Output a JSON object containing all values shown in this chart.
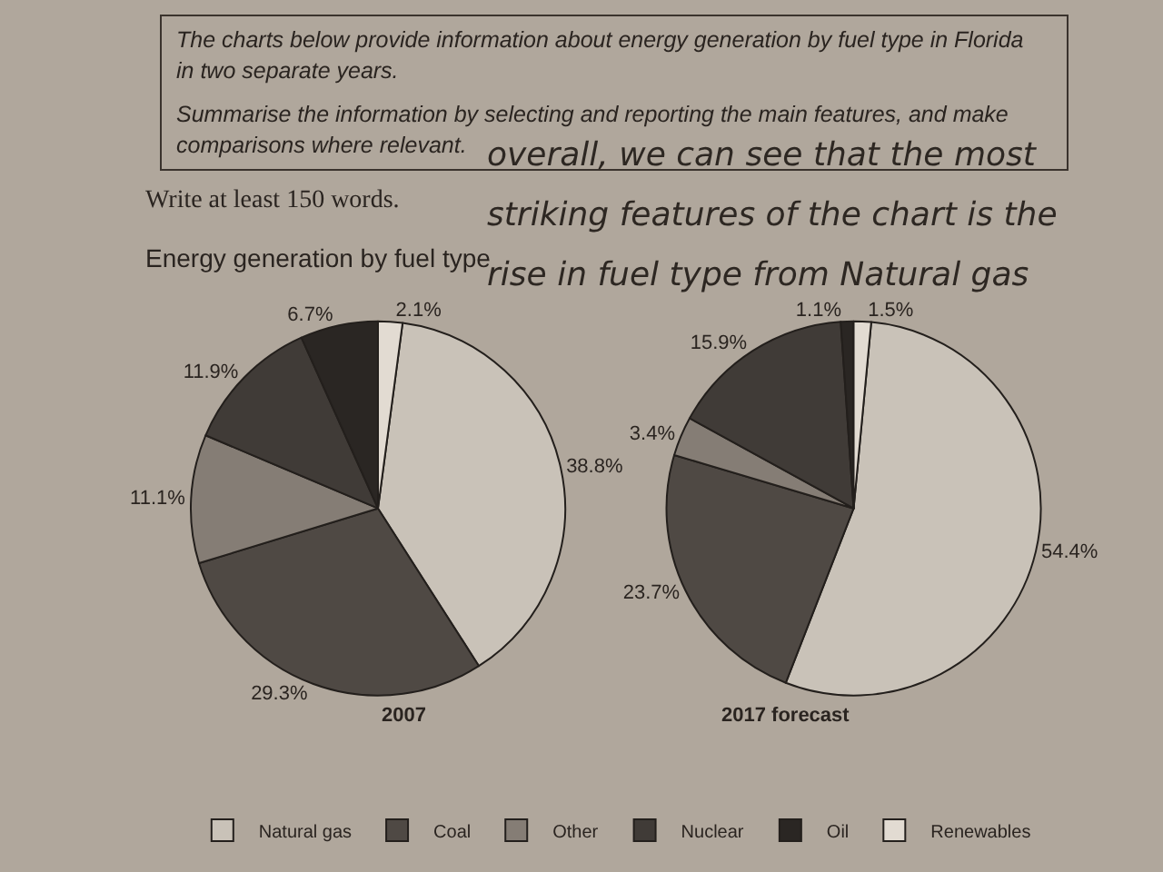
{
  "chart_data": {
    "type": "pie",
    "title": "Energy generation by fuel type",
    "categories": [
      "Natural gas",
      "Coal",
      "Other",
      "Nuclear",
      "Oil",
      "Renewables"
    ],
    "colors": [
      "#c9c2b8",
      "#4f4944",
      "#857d75",
      "#403b37",
      "#2a2623",
      "#e2dbd2"
    ],
    "legend": "bottom",
    "series": [
      {
        "name": "2007",
        "values": [
          38.8,
          29.3,
          11.1,
          11.9,
          6.7,
          2.1
        ],
        "value_labels": [
          "38.8%",
          "29.3%",
          "11.1%",
          "11.9%",
          "6.7%",
          "2.1%"
        ]
      },
      {
        "name": "2017 forecast",
        "values": [
          54.4,
          23.7,
          3.4,
          15.9,
          1.1,
          1.5
        ],
        "value_labels": [
          "54.4%",
          "23.7%",
          "3.4%",
          "15.9%",
          "1.1%",
          "1.5%"
        ]
      }
    ],
    "annotations": [
      "The charts below provide information about energy generation by fuel type in Florida in two separate years.",
      "Summarise the information by selecting and reporting the main features, and make comparisons where relevant.",
      "Write at least 150 words.",
      "overall, we can see that the most striking features of the chart is the rise in fuel type from Natural gas"
    ]
  }
}
